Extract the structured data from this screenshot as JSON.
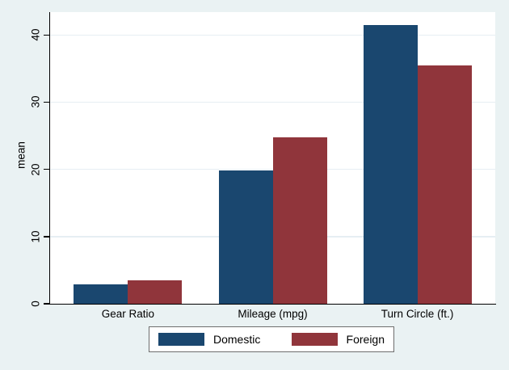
{
  "chart_data": {
    "type": "bar",
    "title": "",
    "categories": [
      "Gear Ratio",
      "Mileage (mpg)",
      "Turn Circle (ft.)"
    ],
    "series": [
      {
        "name": "Domestic",
        "color": "#1a476f",
        "values": [
          2.87,
          19.83,
          41.44
        ]
      },
      {
        "name": "Foreign",
        "color": "#90353b",
        "values": [
          3.51,
          24.77,
          35.41
        ]
      }
    ],
    "xlabel": "",
    "ylabel": "mean",
    "yticks": [
      0,
      10,
      20,
      30,
      40
    ],
    "ylim": [
      0,
      43.4
    ],
    "grid": true,
    "legend_position": "bottom",
    "colors": {
      "background": "#eaf2f3",
      "plot_background": "#ffffff",
      "gridline": "#e6eef3",
      "axis": "#000000",
      "text": "#000000",
      "legend_border": "#6e6e6e"
    }
  }
}
